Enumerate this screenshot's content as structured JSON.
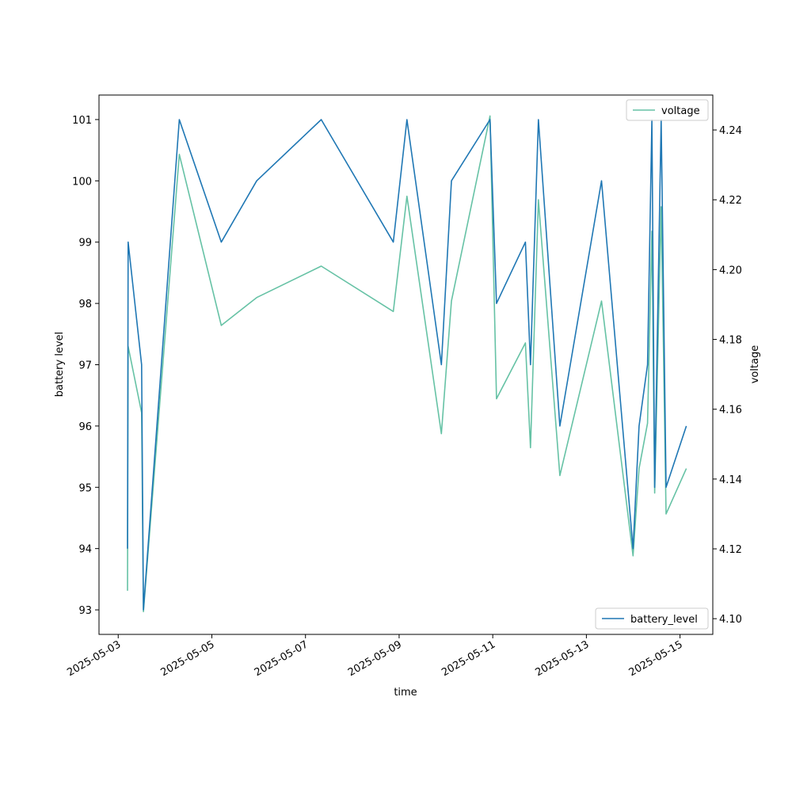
{
  "chart_data": {
    "type": "line",
    "xlabel": "time",
    "ylabel_left": "battery level",
    "ylabel_right": "voltage",
    "x_ticks": [
      "2025-05-03",
      "2025-05-05",
      "2025-05-07",
      "2025-05-09",
      "2025-05-11",
      "2025-05-13",
      "2025-05-15"
    ],
    "y_left_ticks": [
      "93",
      "94",
      "95",
      "96",
      "97",
      "98",
      "99",
      "100",
      "101"
    ],
    "y_right_ticks": [
      "4.10",
      "4.12",
      "4.14",
      "4.16",
      "4.18",
      "4.20",
      "4.22",
      "4.24"
    ],
    "xlim": [
      "2025-05-02T14:09",
      "2025-05-15T16:48"
    ],
    "y_left_lim": [
      92.6,
      101.4
    ],
    "y_right_lim": [
      4.0955,
      4.25
    ],
    "grid": false,
    "series": [
      {
        "name": "battery_level",
        "axis": "left",
        "color": "#1f77b4",
        "legend_position": "lower right",
        "points": [
          [
            "2025-05-03T04:45",
            94
          ],
          [
            "2025-05-03T05:05",
            99
          ],
          [
            "2025-05-03T12:00",
            97
          ],
          [
            "2025-05-03T12:55",
            93
          ],
          [
            "2025-05-04T07:20",
            101
          ],
          [
            "2025-05-05T04:50",
            99
          ],
          [
            "2025-05-05T23:00",
            100
          ],
          [
            "2025-05-07T08:05",
            101
          ],
          [
            "2025-05-08T21:00",
            99
          ],
          [
            "2025-05-09T04:00",
            101
          ],
          [
            "2025-05-09T21:40",
            97
          ],
          [
            "2025-05-10T02:50",
            100
          ],
          [
            "2025-05-10T22:35",
            101
          ],
          [
            "2025-05-11T01:55",
            98
          ],
          [
            "2025-05-11T16:45",
            99
          ],
          [
            "2025-05-11T19:20",
            97
          ],
          [
            "2025-05-11T23:25",
            101
          ],
          [
            "2025-05-12T10:25",
            96
          ],
          [
            "2025-05-13T07:45",
            100
          ],
          [
            "2025-05-13T23:55",
            94
          ],
          [
            "2025-05-14T03:00",
            96
          ],
          [
            "2025-05-14T07:20",
            97
          ],
          [
            "2025-05-14T09:35",
            101
          ],
          [
            "2025-05-14T11:00",
            95
          ],
          [
            "2025-05-14T14:20",
            101
          ],
          [
            "2025-05-14T16:50",
            95
          ],
          [
            "2025-05-15T03:15",
            96
          ]
        ]
      },
      {
        "name": "voltage",
        "axis": "right",
        "color": "#66c2a5",
        "legend_position": "upper right",
        "points": [
          [
            "2025-05-03T04:45",
            4.108
          ],
          [
            "2025-05-03T05:05",
            4.178
          ],
          [
            "2025-05-03T12:00",
            4.159
          ],
          [
            "2025-05-03T12:55",
            4.102
          ],
          [
            "2025-05-04T07:20",
            4.233
          ],
          [
            "2025-05-05T04:50",
            4.184
          ],
          [
            "2025-05-05T23:00",
            4.192
          ],
          [
            "2025-05-07T08:05",
            4.201
          ],
          [
            "2025-05-08T21:00",
            4.188
          ],
          [
            "2025-05-09T04:00",
            4.221
          ],
          [
            "2025-05-09T21:40",
            4.153
          ],
          [
            "2025-05-10T02:50",
            4.191
          ],
          [
            "2025-05-10T22:35",
            4.244
          ],
          [
            "2025-05-11T01:55",
            4.163
          ],
          [
            "2025-05-11T16:45",
            4.179
          ],
          [
            "2025-05-11T19:20",
            4.149
          ],
          [
            "2025-05-11T23:25",
            4.22
          ],
          [
            "2025-05-12T10:25",
            4.141
          ],
          [
            "2025-05-13T07:45",
            4.191
          ],
          [
            "2025-05-13T23:55",
            4.118
          ],
          [
            "2025-05-14T03:00",
            4.143
          ],
          [
            "2025-05-14T07:20",
            4.156
          ],
          [
            "2025-05-14T09:35",
            4.211
          ],
          [
            "2025-05-14T11:00",
            4.136
          ],
          [
            "2025-05-14T14:20",
            4.218
          ],
          [
            "2025-05-14T16:50",
            4.13
          ],
          [
            "2025-05-15T03:15",
            4.143
          ]
        ]
      }
    ]
  }
}
